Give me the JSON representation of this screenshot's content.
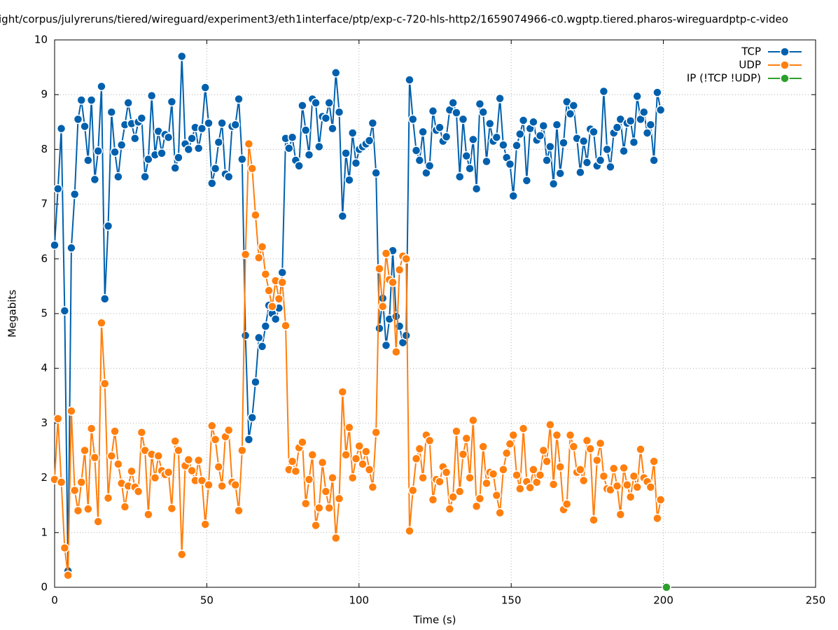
{
  "chart_data": {
    "type": "line",
    "title": "ight/corpus/julyreruns/tiered/wireguard/experiment3/eth1interface/ptp/exp-c-720-hls-http2/1659074966-c0.wgptp.tiered.pharos-wireguardptp-c-video",
    "x_label": "Time (s)",
    "y_label": "Megabits",
    "xlim": [
      0,
      250
    ],
    "xticks": [
      0,
      50,
      100,
      150,
      200,
      250
    ],
    "ylim": [
      0,
      10
    ],
    "yticks": [
      0,
      1,
      2,
      3,
      4,
      5,
      6,
      7,
      8,
      9,
      10
    ],
    "grid": true,
    "legend": "top-right",
    "x": [
      0,
      1.1,
      2.2,
      3.3,
      4.4,
      5.5,
      6.6,
      7.7,
      8.8,
      9.9,
      11,
      12.1,
      13.2,
      14.3,
      15.4,
      16.5,
      17.6,
      18.7,
      19.8,
      20.9,
      22,
      23.1,
      24.2,
      25.3,
      26.4,
      27.5,
      28.6,
      29.7,
      30.8,
      31.9,
      33,
      34.1,
      35.2,
      36.3,
      37.4,
      38.5,
      39.6,
      40.7,
      41.8,
      42.9,
      44,
      45.1,
      46.2,
      47.3,
      48.4,
      49.5,
      50.6,
      51.7,
      52.8,
      53.9,
      55,
      56.1,
      57.2,
      58.3,
      59.4,
      60.5,
      61.6,
      62.7,
      63.8,
      64.9,
      66,
      67.1,
      68.2,
      69.3,
      70.4,
      71.5,
      72.6,
      73.7,
      74.8,
      75.9,
      77,
      78.1,
      79.2,
      80.3,
      81.4,
      82.5,
      83.6,
      84.7,
      85.8,
      86.9,
      88,
      89.1,
      90.2,
      91.3,
      92.4,
      93.5,
      94.6,
      95.7,
      96.8,
      97.9,
      99,
      100.1,
      101.2,
      102.3,
      103.4,
      104.5,
      105.6,
      106.7,
      107.8,
      108.9,
      110,
      111.1,
      112.2,
      113.3,
      114.4,
      115.5,
      116.6,
      117.7,
      118.8,
      119.9,
      121,
      122.1,
      123.2,
      124.3,
      125.4,
      126.5,
      127.6,
      128.7,
      129.8,
      130.9,
      132,
      133.1,
      134.2,
      135.3,
      136.4,
      137.5,
      138.6,
      139.7,
      140.8,
      141.9,
      143,
      144.1,
      145.2,
      146.3,
      147.4,
      148.5,
      149.6,
      150.7,
      151.8,
      152.9,
      154,
      155.1,
      156.2,
      157.3,
      158.4,
      159.5,
      160.6,
      161.7,
      162.8,
      163.9,
      165,
      166.1,
      167.2,
      168.3,
      169.4,
      170.5,
      171.6,
      172.7,
      173.8,
      174.9,
      176,
      177.1,
      178.2,
      179.3,
      180.4,
      181.5,
      182.6,
      183.7,
      184.8,
      185.9,
      187,
      188.1,
      189.2,
      190.3,
      191.4,
      192.5,
      193.6,
      194.7,
      195.8,
      196.9,
      198,
      199.1
    ],
    "series": [
      {
        "name": "TCP",
        "color": "#0060ad",
        "values": [
          6.25,
          7.28,
          8.38,
          5.05,
          0.3,
          6.2,
          7.18,
          8.55,
          8.9,
          8.42,
          7.8,
          8.9,
          7.45,
          7.97,
          9.15,
          5.27,
          6.6,
          8.68,
          7.95,
          7.5,
          8.08,
          8.45,
          8.85,
          8.47,
          8.2,
          8.5,
          8.57,
          7.5,
          7.82,
          8.98,
          7.9,
          8.33,
          7.93,
          8.27,
          8.22,
          8.87,
          7.66,
          7.85,
          9.7,
          8.1,
          8.0,
          8.2,
          8.4,
          8.02,
          8.38,
          9.13,
          8.48,
          7.38,
          7.65,
          8.13,
          8.48,
          7.55,
          7.5,
          8.42,
          8.45,
          8.92,
          7.82,
          4.6,
          2.7,
          3.1,
          3.75,
          4.56,
          4.4,
          4.77,
          5.15,
          5.0,
          4.9,
          5.1,
          5.75,
          8.2,
          8.02,
          8.22,
          7.8,
          7.7,
          8.8,
          8.35,
          7.9,
          8.92,
          8.85,
          8.05,
          8.6,
          8.57,
          8.85,
          8.38,
          9.4,
          8.68,
          6.78,
          7.93,
          7.44,
          8.3,
          7.75,
          8.0,
          8.05,
          8.1,
          8.16,
          8.48,
          7.57,
          4.73,
          5.28,
          4.42,
          4.9,
          6.15,
          4.95,
          4.77,
          4.47,
          4.6,
          9.27,
          8.55,
          7.98,
          7.8,
          8.32,
          7.57,
          7.7,
          8.7,
          8.35,
          8.4,
          8.15,
          8.23,
          8.72,
          8.85,
          8.67,
          7.5,
          8.55,
          7.88,
          7.65,
          8.18,
          7.28,
          8.83,
          8.68,
          7.78,
          8.47,
          8.15,
          8.22,
          8.93,
          8.08,
          7.85,
          7.73,
          7.15,
          8.07,
          8.28,
          8.53,
          7.43,
          8.38,
          8.5,
          8.17,
          8.25,
          8.43,
          7.8,
          8.05,
          7.37,
          8.45,
          7.56,
          8.12,
          8.87,
          8.65,
          8.8,
          8.2,
          7.58,
          8.15,
          7.76,
          8.37,
          8.32,
          7.7,
          7.8,
          9.06,
          8.0,
          7.68,
          8.3,
          8.4,
          8.55,
          7.97,
          8.48,
          8.52,
          8.13,
          8.97,
          8.55,
          8.68,
          8.3,
          8.45,
          7.8,
          9.04,
          8.72
        ]
      },
      {
        "name": "UDP",
        "color": "#ff7f0e",
        "values": [
          1.97,
          3.08,
          1.92,
          0.72,
          0.22,
          3.22,
          1.77,
          1.4,
          1.92,
          2.5,
          1.43,
          2.9,
          2.37,
          1.2,
          4.83,
          3.72,
          1.63,
          2.4,
          2.85,
          2.25,
          1.9,
          1.47,
          1.85,
          2.12,
          1.83,
          1.75,
          2.83,
          2.5,
          1.33,
          2.43,
          2.0,
          2.4,
          2.13,
          2.06,
          2.1,
          1.44,
          2.67,
          2.5,
          0.6,
          2.22,
          2.33,
          2.13,
          1.95,
          2.32,
          1.95,
          1.15,
          1.87,
          2.95,
          2.7,
          2.2,
          1.85,
          2.75,
          2.87,
          1.92,
          1.87,
          1.4,
          2.5,
          6.08,
          8.1,
          7.65,
          6.8,
          6.02,
          6.22,
          5.72,
          5.42,
          5.13,
          5.6,
          5.27,
          5.57,
          4.78,
          2.15,
          2.3,
          2.12,
          2.55,
          2.65,
          1.53,
          1.97,
          2.42,
          1.13,
          1.45,
          2.28,
          1.75,
          1.45,
          2.0,
          0.9,
          1.62,
          3.57,
          2.42,
          2.92,
          2.0,
          2.35,
          2.58,
          2.25,
          2.48,
          2.15,
          1.83,
          2.83,
          5.82,
          5.13,
          6.1,
          5.62,
          5.57,
          4.3,
          5.8,
          6.05,
          6.0,
          1.03,
          1.77,
          2.35,
          2.53,
          2.0,
          2.78,
          2.68,
          1.6,
          1.97,
          1.93,
          2.2,
          2.1,
          1.43,
          1.65,
          2.85,
          1.75,
          2.43,
          2.72,
          2.0,
          3.05,
          1.48,
          1.62,
          2.57,
          1.9,
          2.1,
          2.07,
          1.68,
          1.36,
          2.15,
          2.45,
          2.62,
          2.78,
          2.05,
          1.8,
          2.9,
          1.93,
          1.82,
          2.15,
          1.92,
          2.05,
          2.5,
          2.3,
          2.97,
          1.88,
          2.78,
          2.2,
          1.42,
          1.52,
          2.78,
          2.57,
          2.1,
          2.15,
          1.95,
          2.68,
          2.53,
          1.23,
          2.32,
          2.63,
          2.03,
          1.8,
          1.78,
          2.17,
          1.85,
          1.33,
          2.18,
          1.87,
          1.65,
          2.03,
          1.83,
          2.52,
          2.0,
          1.93,
          1.83,
          2.3,
          1.26,
          1.6
        ]
      },
      {
        "name": "IP (!TCP  !UDP)",
        "color": "#2ca02c",
        "x": [
          201
        ],
        "values": [
          0
        ]
      }
    ]
  }
}
